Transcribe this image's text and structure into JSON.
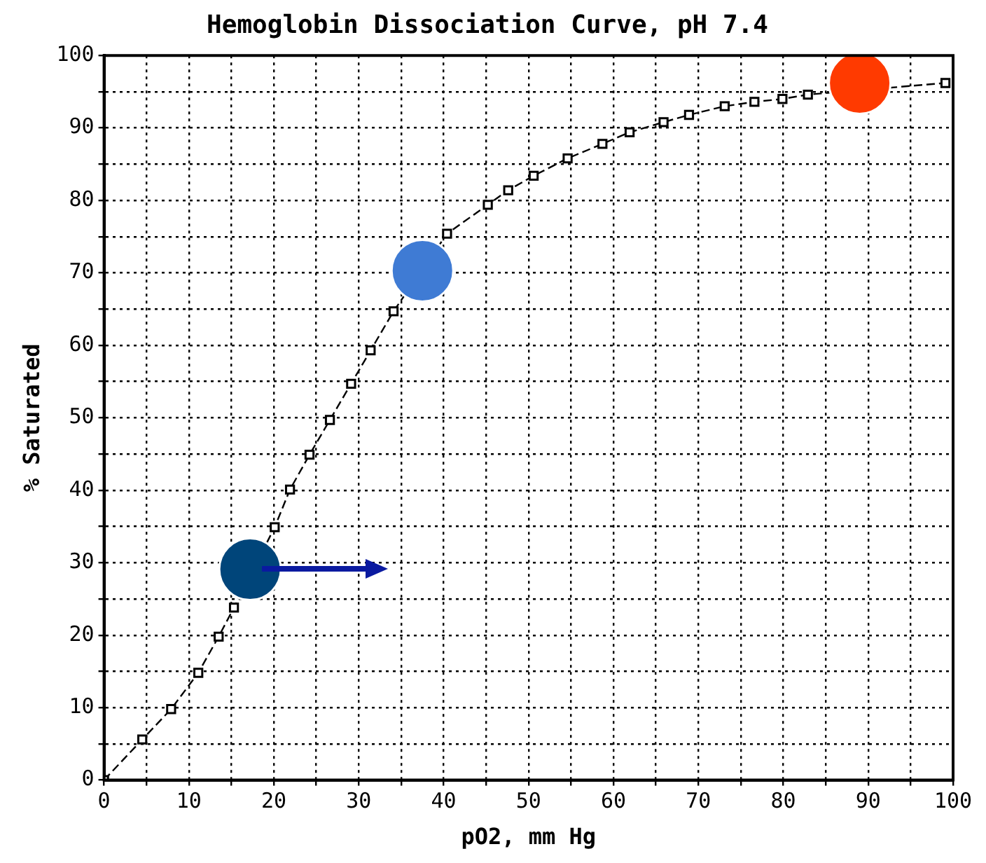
{
  "chart_data": {
    "type": "line",
    "title": "Hemoglobin Dissociation Curve, pH 7.4",
    "xlabel": "pO2, mm Hg",
    "ylabel": "% Saturated",
    "xlim": [
      0,
      100
    ],
    "ylim": [
      0,
      100
    ],
    "xticks": [
      0,
      {
        "value": 5,
        "label": null
      },
      10,
      {
        "value": 15,
        "label": null
      },
      20,
      {
        "value": 25,
        "label": null
      },
      30,
      {
        "value": 35,
        "label": null
      },
      40,
      {
        "value": 45,
        "label": null
      },
      50,
      {
        "value": 55,
        "label": null
      },
      60,
      {
        "value": 65,
        "label": null
      },
      70,
      {
        "value": 75,
        "label": null
      },
      80,
      {
        "value": 85,
        "label": null
      },
      90,
      {
        "value": 95,
        "label": null
      },
      100
    ],
    "yticks": [
      0,
      {
        "value": 5,
        "label": null
      },
      10,
      {
        "value": 15,
        "label": null
      },
      20,
      {
        "value": 25,
        "label": null
      },
      30,
      {
        "value": 35,
        "label": null
      },
      40,
      {
        "value": 45,
        "label": null
      },
      50,
      {
        "value": 55,
        "label": null
      },
      60,
      {
        "value": 65,
        "label": null
      },
      70,
      {
        "value": 75,
        "label": null
      },
      80,
      {
        "value": 85,
        "label": null
      },
      90,
      {
        "value": 95,
        "label": null
      },
      100
    ],
    "grid": true,
    "legend": false,
    "series": [
      {
        "type": "line",
        "color": "#000000",
        "marker": "square",
        "line_style": "dashed",
        "x": [
          0,
          4.5,
          7.9,
          11.1,
          13.5,
          15.3,
          17.8,
          20.1,
          21.9,
          24.2,
          26.6,
          29.1,
          31.4,
          34.1,
          37,
          40.4,
          45.2,
          47.6,
          50.6,
          54.6,
          58.7,
          61.9,
          65.9,
          68.9,
          73.1,
          76.6,
          79.9,
          82.9,
          86,
          99.1
        ],
        "values": [
          0,
          5.6,
          9.8,
          14.8,
          19.8,
          23.8,
          null,
          34.9,
          40.1,
          44.9,
          49.7,
          54.7,
          59.3,
          64.7,
          null,
          75.4,
          79.4,
          81.4,
          83.4,
          85.8,
          87.8,
          89.4,
          90.8,
          91.8,
          93,
          93.6,
          94,
          94.6,
          null,
          96.2
        ]
      },
      {
        "type": "scatter",
        "marker": "circle",
        "colors": [
          "#00457a",
          "#3f7bd4",
          "#ff3a00"
        ],
        "x": [
          17.2,
          37.5,
          89
        ],
        "values": [
          29.1,
          70.3,
          96.2
        ]
      }
    ]
  }
}
